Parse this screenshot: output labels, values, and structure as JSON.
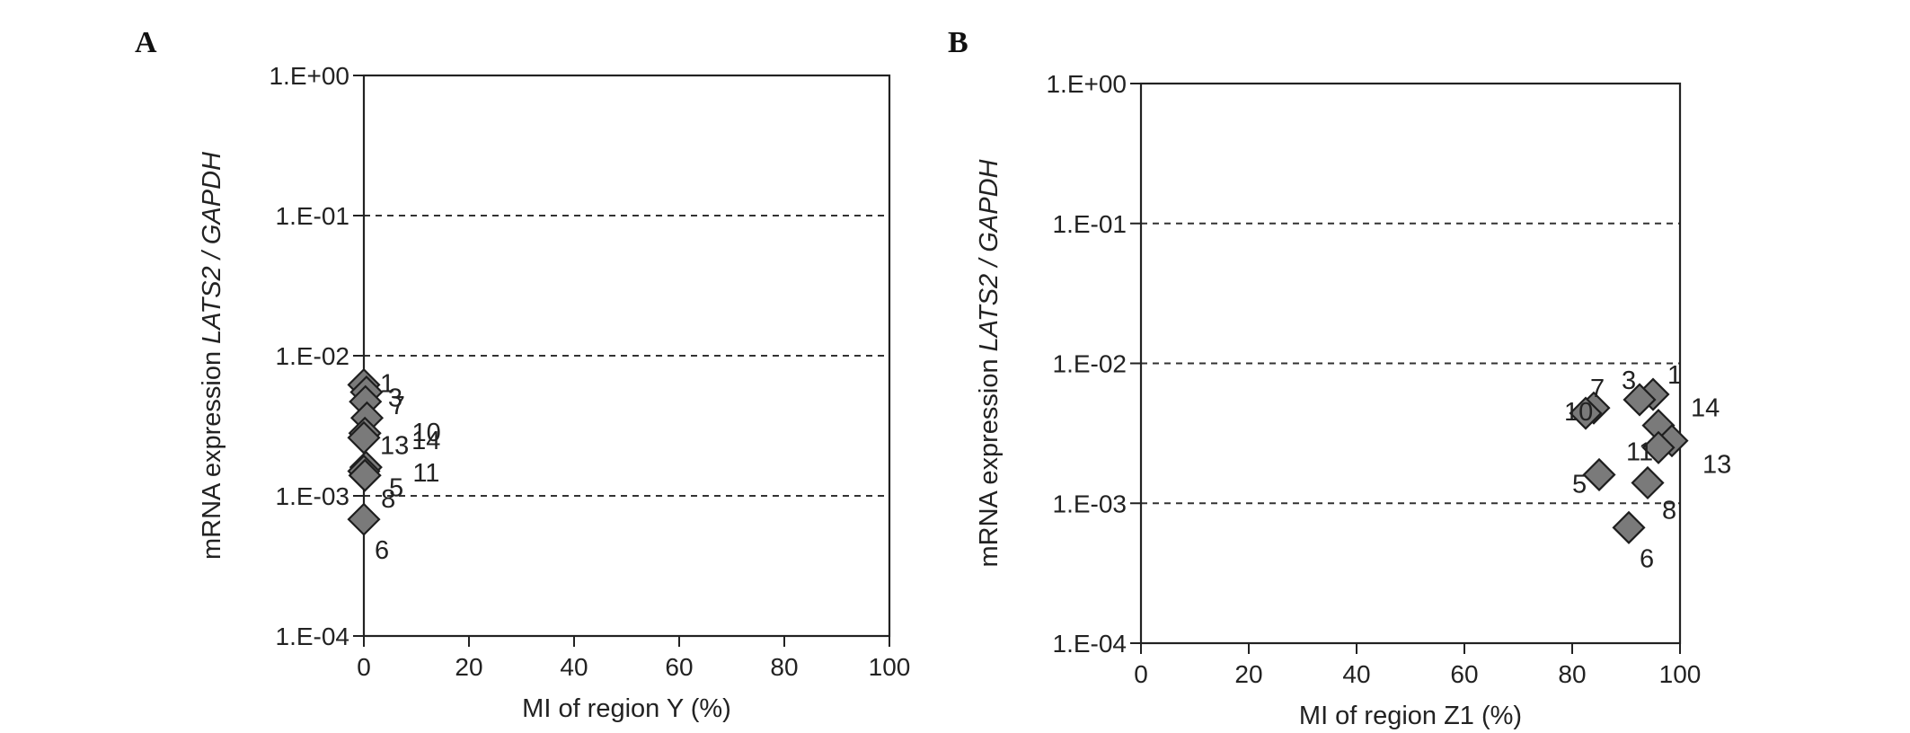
{
  "chart_data": [
    {
      "type": "scatter",
      "panel": "A",
      "xlabel": "MI of region Y (%)",
      "ylabel_parts": [
        "mRNA expression ",
        "LATS2 / GAPDH"
      ],
      "xlim": [
        0,
        100
      ],
      "ylim": [
        0.0001,
        1
      ],
      "yscale": "log",
      "xticks": [
        0,
        20,
        40,
        60,
        80,
        100
      ],
      "yticks": [
        {
          "value": 1,
          "label": "1.E+00"
        },
        {
          "value": 0.1,
          "label": "1.E-01"
        },
        {
          "value": 0.01,
          "label": "1.E-02"
        },
        {
          "value": 0.001,
          "label": "1.E-03"
        },
        {
          "value": 0.0001,
          "label": "1.E-04"
        }
      ],
      "grid": "horizontal dashed",
      "marker": "diamond",
      "marker_color": "#7a7a7a",
      "points": [
        {
          "label": "1",
          "x": 0,
          "y": 0.0062
        },
        {
          "label": "3",
          "x": 0.5,
          "y": 0.0055
        },
        {
          "label": "7",
          "x": 0.3,
          "y": 0.0047
        },
        {
          "label": "10",
          "x": 0.6,
          "y": 0.0036
        },
        {
          "label": "14",
          "x": 0.2,
          "y": 0.0028
        },
        {
          "label": "13",
          "x": 0,
          "y": 0.0026
        },
        {
          "label": "11",
          "x": 0.4,
          "y": 0.0016
        },
        {
          "label": "5",
          "x": 0,
          "y": 0.0015
        },
        {
          "label": "8",
          "x": 0.2,
          "y": 0.0014
        },
        {
          "label": "6",
          "x": 0,
          "y": 0.00068
        }
      ]
    },
    {
      "type": "scatter",
      "panel": "B",
      "xlabel": "MI of region Z1 (%)",
      "ylabel_parts": [
        "mRNA expression ",
        "LATS2 / GAPDH"
      ],
      "xlim": [
        0,
        100
      ],
      "ylim": [
        0.0001,
        1
      ],
      "yscale": "log",
      "xticks": [
        0,
        20,
        40,
        60,
        80,
        100
      ],
      "yticks": [
        {
          "value": 1,
          "label": "1.E+00"
        },
        {
          "value": 0.1,
          "label": "1.E-01"
        },
        {
          "value": 0.01,
          "label": "1.E-02"
        },
        {
          "value": 0.001,
          "label": "1.E-03"
        },
        {
          "value": 0.0001,
          "label": "1.E-04"
        }
      ],
      "grid": "horizontal dashed",
      "marker": "diamond",
      "marker_color": "#7a7a7a",
      "points": [
        {
          "label": "1",
          "x": 95,
          "y": 0.006
        },
        {
          "label": "3",
          "x": 92.5,
          "y": 0.0055
        },
        {
          "label": "7",
          "x": 84,
          "y": 0.0048
        },
        {
          "label": "10",
          "x": 82.5,
          "y": 0.0044
        },
        {
          "label": "14",
          "x": 96,
          "y": 0.0036
        },
        {
          "label": "13",
          "x": 98.5,
          "y": 0.0028
        },
        {
          "label": "11",
          "x": 96,
          "y": 0.0025
        },
        {
          "label": "5",
          "x": 85,
          "y": 0.0016
        },
        {
          "label": "8",
          "x": 94,
          "y": 0.0014
        },
        {
          "label": "6",
          "x": 90.5,
          "y": 0.00067
        }
      ]
    }
  ]
}
